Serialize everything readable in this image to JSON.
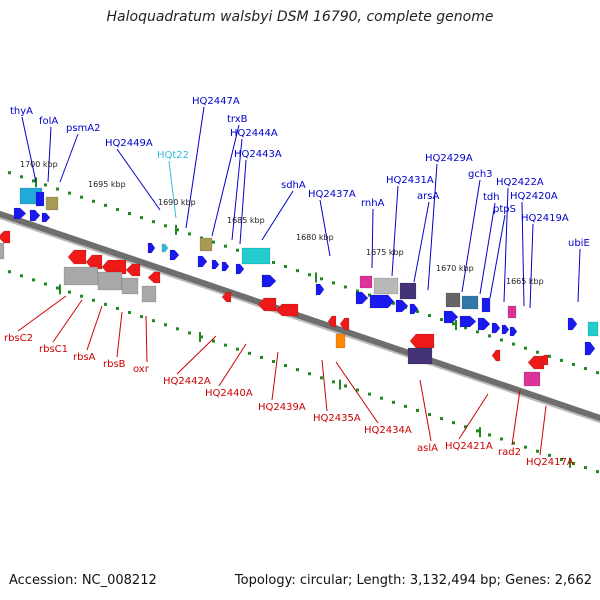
{
  "title": "Haloquadratum walsbyi DSM 16790, complete genome",
  "footer": {
    "accession": "Accession: NC_008212",
    "summary": "Topology: circular; Length: 3,132,494 bp; Genes: 2,662"
  },
  "colors": {
    "forward_label": "#0000cc",
    "reverse_label": "#cc0000",
    "trna_label": "#33bbdd",
    "backbone": "#6e6e6e",
    "tick": "#1f8a1f"
  },
  "ticks": [
    "1700 kbp",
    "1695 kbp",
    "1690 kbp",
    "1685 kbp",
    "1680 kbp",
    "1675 kbp",
    "1670 kbp",
    "1665 kbp"
  ],
  "top_labels": [
    {
      "text": "thyA",
      "kind": "forward"
    },
    {
      "text": "folA",
      "kind": "forward"
    },
    {
      "text": "psmA2",
      "kind": "forward"
    },
    {
      "text": "HQ2449A",
      "kind": "forward"
    },
    {
      "text": "HQt22",
      "kind": "trna"
    },
    {
      "text": "HQ2447A",
      "kind": "forward"
    },
    {
      "text": "trxB",
      "kind": "forward"
    },
    {
      "text": "HQ2444A",
      "kind": "forward"
    },
    {
      "text": "HQ2443A",
      "kind": "forward"
    },
    {
      "text": "sdhA",
      "kind": "forward"
    },
    {
      "text": "HQ2437A",
      "kind": "forward"
    },
    {
      "text": "rnhA",
      "kind": "forward"
    },
    {
      "text": "HQ2431A",
      "kind": "forward"
    },
    {
      "text": "arsA",
      "kind": "forward"
    },
    {
      "text": "HQ2429A",
      "kind": "forward"
    },
    {
      "text": "gch3",
      "kind": "forward"
    },
    {
      "text": "tdh",
      "kind": "forward"
    },
    {
      "text": "ptpS",
      "kind": "forward"
    },
    {
      "text": "HQ2422A",
      "kind": "forward"
    },
    {
      "text": "HQ2420A",
      "kind": "forward"
    },
    {
      "text": "HQ2419A",
      "kind": "forward"
    },
    {
      "text": "ubiE",
      "kind": "forward"
    }
  ],
  "bottom_labels": [
    {
      "text": "rbsC2",
      "kind": "reverse"
    },
    {
      "text": "rbsC1",
      "kind": "reverse"
    },
    {
      "text": "rbsA",
      "kind": "reverse"
    },
    {
      "text": "rbsB",
      "kind": "reverse"
    },
    {
      "text": "oxr",
      "kind": "reverse"
    },
    {
      "text": "HQ2442A",
      "kind": "reverse"
    },
    {
      "text": "HQ2440A",
      "kind": "reverse"
    },
    {
      "text": "HQ2439A",
      "kind": "reverse"
    },
    {
      "text": "HQ2435A",
      "kind": "reverse"
    },
    {
      "text": "HQ2434A",
      "kind": "reverse"
    },
    {
      "text": "aslA",
      "kind": "reverse"
    },
    {
      "text": "HQ2421A",
      "kind": "reverse"
    },
    {
      "text": "rad2",
      "kind": "reverse"
    },
    {
      "text": "HQ2417A",
      "kind": "reverse"
    }
  ]
}
